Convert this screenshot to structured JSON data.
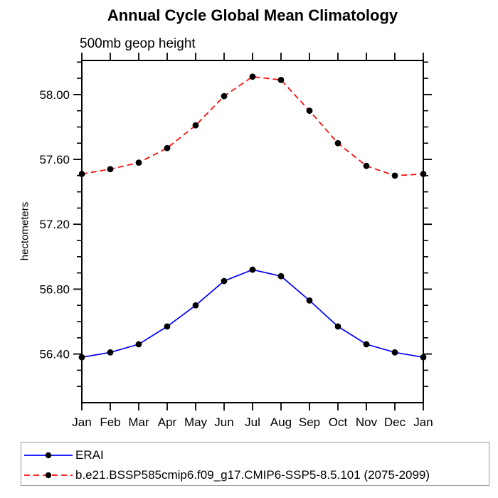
{
  "chart_data": {
    "type": "line",
    "title": "Annual Cycle Global Mean Climatology",
    "subtitle": "500mb geop height",
    "ylabel": "hectometers",
    "xlabel": "",
    "categories": [
      "Jan",
      "Feb",
      "Mar",
      "Apr",
      "May",
      "Jun",
      "Jul",
      "Aug",
      "Sep",
      "Oct",
      "Nov",
      "Dec",
      "Jan"
    ],
    "ylim": [
      56.1,
      58.21
    ],
    "y_major_ticks": [
      56.4,
      56.8,
      57.2,
      57.6,
      58.0
    ],
    "y_minor_step": 0.1,
    "grid": "off",
    "legend_position": "bottom-left",
    "axis_color": "#000000",
    "series": [
      {
        "name": "ERAI",
        "color": "#0000ff",
        "line_style": "solid",
        "marker_color": "#000000",
        "values": [
          56.38,
          56.41,
          56.46,
          56.57,
          56.7,
          56.85,
          56.92,
          56.88,
          56.73,
          56.57,
          56.46,
          56.41,
          56.38
        ]
      },
      {
        "name": "b.e21.BSSP585cmip6.f09_g17.CMIP6-SSP5-8.5.101 (2075-2099)",
        "color": "#ff0000",
        "line_style": "dashed",
        "marker_color": "#000000",
        "values": [
          57.51,
          57.54,
          57.58,
          57.67,
          57.81,
          57.99,
          58.11,
          58.09,
          57.9,
          57.7,
          57.56,
          57.5,
          57.51
        ]
      }
    ]
  }
}
